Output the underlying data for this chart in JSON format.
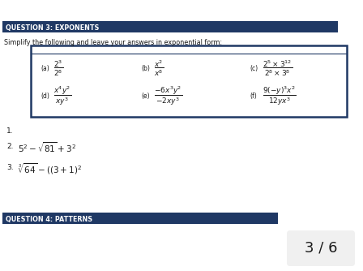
{
  "header1_text": "QUESTION 3: EXPONENTS",
  "header1_color": "#1F3864",
  "header2_text": "QUESTION 4: PATTERNS",
  "header2_color": "#1F3864",
  "header_text_color": "#FFFFFF",
  "subtitle": "Simplify the following and leave your answers in exponential form:",
  "bg_color": "#FFFFFF",
  "items": [
    {
      "label": "(a)",
      "expr": "$\\dfrac{2^3}{2^8}$"
    },
    {
      "label": "(b)",
      "expr": "$\\dfrac{x^2}{x^8}$"
    },
    {
      "label": "(c)",
      "expr": "$\\dfrac{2^5 \\times 3^{12}}{2^8 \\times 3^8}$"
    },
    {
      "label": "(d)",
      "expr": "$\\dfrac{x^4 y^2}{xy^3}$"
    },
    {
      "label": "(e)",
      "expr": "$\\dfrac{-6x^3 y^2}{-2xy^3}$"
    },
    {
      "label": "(f)",
      "expr": "$\\dfrac{9(-y)^3 x^2}{12yx^3}$"
    }
  ],
  "num1_label": "1.",
  "num2_label": "2.",
  "num2_expr": "$5^2 - \\sqrt{81} + 3^2$",
  "num3_label": "3.",
  "num3_expr": "$\\sqrt[3]{64} - ((3 + 1)^2$",
  "page_indicator": "3 / 6",
  "box_border_color": "#1F3864",
  "font_color": "#1a1a1a",
  "circle_color": "#f0f0f0"
}
